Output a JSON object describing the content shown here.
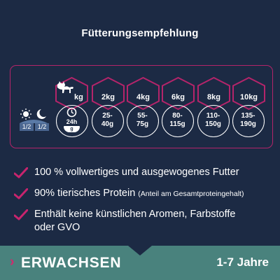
{
  "title": "Fütterungsempfehlung",
  "feeding_table": {
    "header_unit": "kg",
    "daily_label": "24h",
    "bowl_label": "g",
    "day_portion": "1/2",
    "night_portion": "1/2",
    "weights": [
      "2kg",
      "4kg",
      "6kg",
      "8kg",
      "10kg"
    ],
    "amounts": [
      "25-\n40g",
      "55-\n75g",
      "80-\n115g",
      "110-\n150g",
      "135-\n190g"
    ]
  },
  "icons": [
    "cat-icon",
    "clock-icon",
    "bowl-icon",
    "sun-icon",
    "moon-icon",
    "checkmark-icon",
    "chevron-right-icon"
  ],
  "bullets": [
    {
      "text": "100 % vollwertiges und ausgewogenes Futter",
      "note": ""
    },
    {
      "text": "90% tierisches Protein",
      "note": "(Anteil am Gesamtproteingehalt)"
    },
    {
      "text": "Enthält keine künstlichen Aromen, Farbstoffe\noder GVO",
      "note": ""
    }
  ],
  "footer": {
    "chevron": "›",
    "stage": "ERWACHSEN",
    "age": "1-7 Jahre"
  },
  "colors": {
    "background": "#1c2a44",
    "accent": "#b4246a",
    "footer_bg": "#49827d",
    "text": "#ffffff"
  }
}
